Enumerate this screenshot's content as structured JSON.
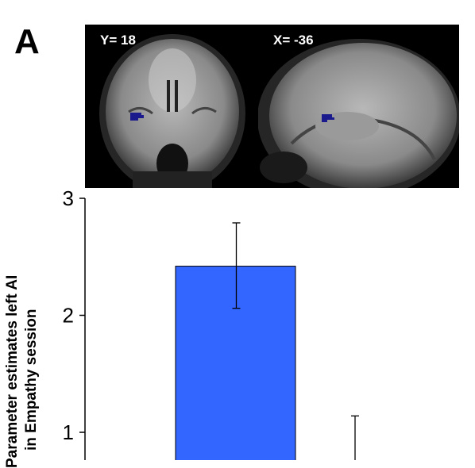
{
  "panel_label": "A",
  "brain_images": [
    {
      "label": "Y= 18",
      "view": "coronal",
      "roi_color": "#1a1a8c"
    },
    {
      "label": "X= -36",
      "view": "sagittal",
      "roi_color": "#1a1a8c"
    }
  ],
  "chart_data": {
    "type": "bar",
    "ylabel_lines": [
      "Parameter estimates left AI",
      "in Empathy session"
    ],
    "ylim": [
      0,
      3
    ],
    "yticks": [
      1,
      2,
      3
    ],
    "bars": [
      {
        "value": 2.42,
        "error_upper": 2.79,
        "error_lower": 2.06,
        "color": "#3366ff"
      }
    ],
    "errorbars_without_bar": [
      {
        "error_upper": 1.14
      }
    ]
  }
}
